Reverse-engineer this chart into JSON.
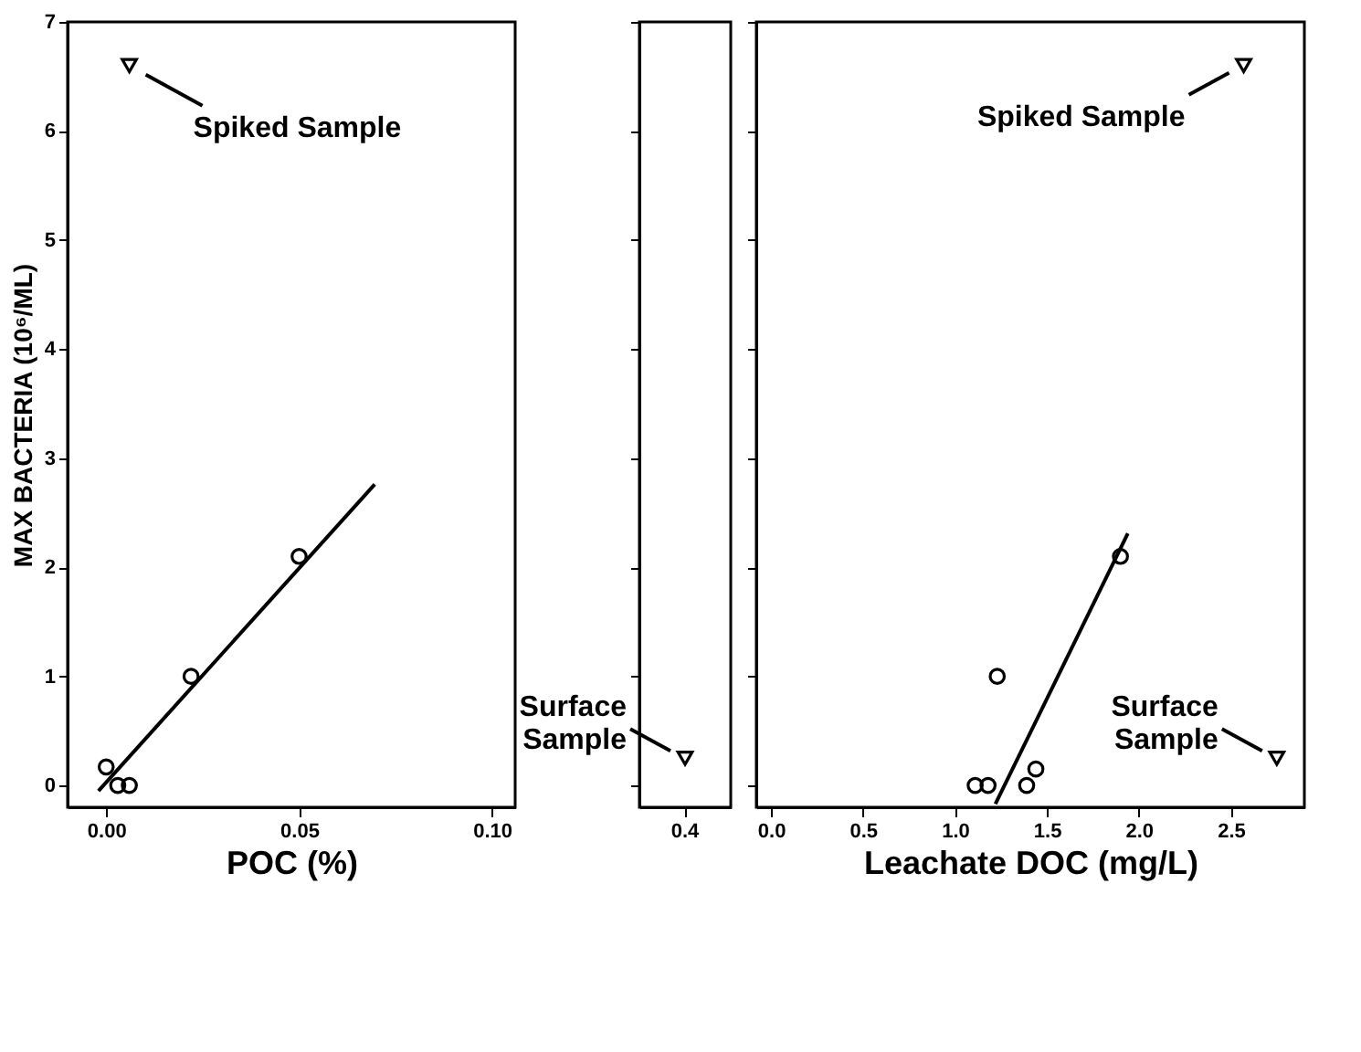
{
  "chart_data": [
    {
      "type": "scatter",
      "xlabel": "POC (%)",
      "ylabel": "MAX BACTERIA (10⁶/ML)",
      "xlim": [
        -0.01,
        0.106
      ],
      "xticks": [
        {
          "value": 0,
          "label": "0.00"
        },
        {
          "value": 0.05,
          "label": "0.05"
        },
        {
          "value": 0.1,
          "label": "0.10"
        }
      ],
      "ylim": [
        -0.2,
        7
      ],
      "yticks": [
        0,
        1,
        2,
        3,
        4,
        5,
        6,
        7
      ],
      "grid": false,
      "series": [
        {
          "marker": "circle",
          "color": "#000000",
          "x": [
            0.0,
            0.003,
            0.006,
            0.022,
            0.05
          ],
          "values": [
            0.17,
            0,
            0,
            1.0,
            2.1
          ]
        },
        {
          "marker": "triangle",
          "color": "#000000",
          "x": [
            0.006
          ],
          "values": [
            6.6
          ]
        },
        {
          "type": "line",
          "color": "#000000",
          "x": [
            -0.002,
            0.0696
          ],
          "values": [
            -0.05,
            2.76
          ]
        }
      ],
      "annotations": [
        {
          "text": "Spiked Sample",
          "x": 0.006,
          "y": 6.6
        }
      ]
    },
    {
      "type": "scatter",
      "categories": [
        "0.4"
      ],
      "ylim": [
        -0.2,
        7
      ],
      "yticks": [
        0,
        1,
        2,
        3,
        4,
        5,
        6,
        7
      ],
      "tick_labels": "x",
      "grid": false,
      "series": [
        {
          "marker": "triangle",
          "color": "#000000",
          "values": [
            0.25
          ]
        }
      ],
      "annotations": [
        {
          "text": "Surface\nSample",
          "x": "0.4",
          "y": 0.25
        }
      ]
    },
    {
      "type": "scatter",
      "xlabel": "Leachate DOC (mg/L)",
      "xlim": [
        -0.08,
        2.9
      ],
      "xticks": [
        {
          "value": 0,
          "label": "0.0"
        },
        {
          "value": 0.5,
          "label": "0.5"
        },
        {
          "value": 1,
          "label": "1.0"
        },
        {
          "value": 1.5,
          "label": "1.5"
        },
        {
          "value": 2,
          "label": "2.0"
        },
        {
          "value": 2.5,
          "label": "2.5"
        }
      ],
      "ylim": [
        -0.2,
        7
      ],
      "yticks": [
        0,
        1,
        2,
        3,
        4,
        5,
        6,
        7
      ],
      "tick_labels": "x",
      "grid": false,
      "series": [
        {
          "marker": "circle",
          "color": "#000000",
          "x": [
            1.11,
            1.18,
            1.23,
            1.39,
            1.44,
            1.9
          ],
          "values": [
            0,
            0,
            1.0,
            0,
            0.15,
            2.1
          ]
        },
        {
          "marker": "triangle",
          "color": "#000000",
          "x": [
            2.57,
            2.75
          ],
          "values": [
            6.6,
            0.25
          ]
        },
        {
          "type": "line",
          "color": "#000000",
          "x": [
            1.22,
            1.94
          ],
          "values": [
            -0.17,
            2.31
          ]
        }
      ],
      "annotations": [
        {
          "text": "Spiked Sample",
          "x": 2.57,
          "y": 6.6
        },
        {
          "text": "Surface\nSample",
          "x": 2.75,
          "y": 0.25
        }
      ]
    }
  ]
}
